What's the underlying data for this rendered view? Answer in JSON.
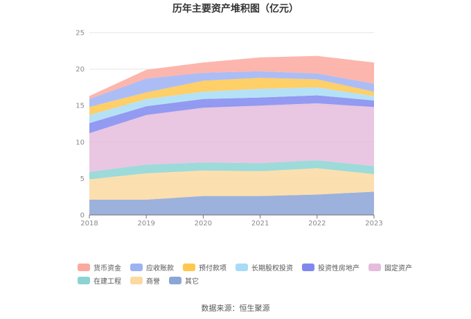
{
  "source_text": "数据来源：恒生聚源",
  "chart_data": {
    "type": "area",
    "stacked": true,
    "title": "历年主要资产堆积图（亿元）",
    "x": [
      "2018",
      "2019",
      "2020",
      "2021",
      "2022",
      "2023"
    ],
    "ylim": [
      0,
      25
    ],
    "yticks": [
      0,
      5,
      10,
      15,
      20,
      25
    ],
    "grid": true,
    "legend_position": "bottom",
    "series": [
      {
        "name": "其它",
        "color": "#8ba5d6",
        "values": [
          2.1,
          2.1,
          2.6,
          2.6,
          2.8,
          3.2
        ]
      },
      {
        "name": "商誉",
        "color": "#fbd9a0",
        "values": [
          2.8,
          3.6,
          3.5,
          3.4,
          3.6,
          2.4
        ]
      },
      {
        "name": "在建工程",
        "color": "#8cd3d3",
        "values": [
          1.0,
          1.2,
          1.1,
          1.1,
          1.1,
          1.1
        ]
      },
      {
        "name": "固定资产",
        "color": "#e5bcdc",
        "values": [
          5.3,
          6.8,
          7.5,
          7.9,
          7.8,
          8.1
        ]
      },
      {
        "name": "投资性房地产",
        "color": "#8088ee",
        "values": [
          1.4,
          1.2,
          1.2,
          1.1,
          1.1,
          0.9
        ]
      },
      {
        "name": "长期股权投资",
        "color": "#a8dcf6",
        "values": [
          1.1,
          1.0,
          1.0,
          1.2,
          1.1,
          0.6
        ]
      },
      {
        "name": "预付款项",
        "color": "#ffc74d",
        "values": [
          1.1,
          0.9,
          1.5,
          1.5,
          1.1,
          0.6
        ]
      },
      {
        "name": "应收账款",
        "color": "#9db2f3",
        "values": [
          1.1,
          1.9,
          1.1,
          0.9,
          0.8,
          1.1
        ]
      },
      {
        "name": "货币资金",
        "color": "#fba99f",
        "values": [
          0.4,
          1.2,
          1.4,
          1.9,
          2.4,
          2.9
        ]
      }
    ],
    "legend_order": [
      "货币资金",
      "应收账款",
      "预付款项",
      "长期股权投资",
      "投资性房地产",
      "固定资产",
      "在建工程",
      "商誉",
      "其它"
    ]
  }
}
